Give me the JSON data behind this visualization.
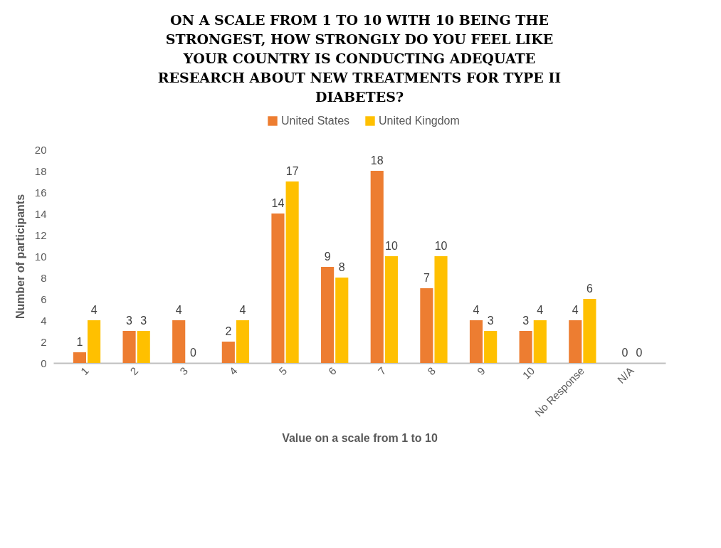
{
  "chart_data": {
    "type": "bar",
    "title": "ON A SCALE FROM 1 TO 10 WITH 10 BEING THE STRONGEST, HOW STRONGLY DO YOU FEEL LIKE YOUR COUNTRY IS CONDUCTING ADEQUATE RESEARCH ABOUT NEW TREATMENTS FOR TYPE II DIABETES?",
    "xlabel": "Value on a scale from 1 to 10",
    "ylabel": "Number of participants",
    "categories": [
      "1",
      "2",
      "3",
      "4",
      "5",
      "6",
      "7",
      "8",
      "9",
      "10",
      "No Response",
      "N/A"
    ],
    "series": [
      {
        "name": "United States",
        "color": "#ed7d31",
        "values": [
          1,
          3,
          4,
          2,
          14,
          9,
          18,
          7,
          4,
          3,
          4,
          0
        ]
      },
      {
        "name": "United Kingdom",
        "color": "#ffc000",
        "values": [
          4,
          3,
          0,
          4,
          17,
          8,
          10,
          10,
          3,
          4,
          6,
          0
        ]
      }
    ],
    "ylim": [
      0,
      20
    ],
    "yticks": [
      0,
      2,
      4,
      6,
      8,
      10,
      12,
      14,
      16,
      18,
      20
    ],
    "data_labels": true,
    "legend": "top",
    "grid": false
  }
}
